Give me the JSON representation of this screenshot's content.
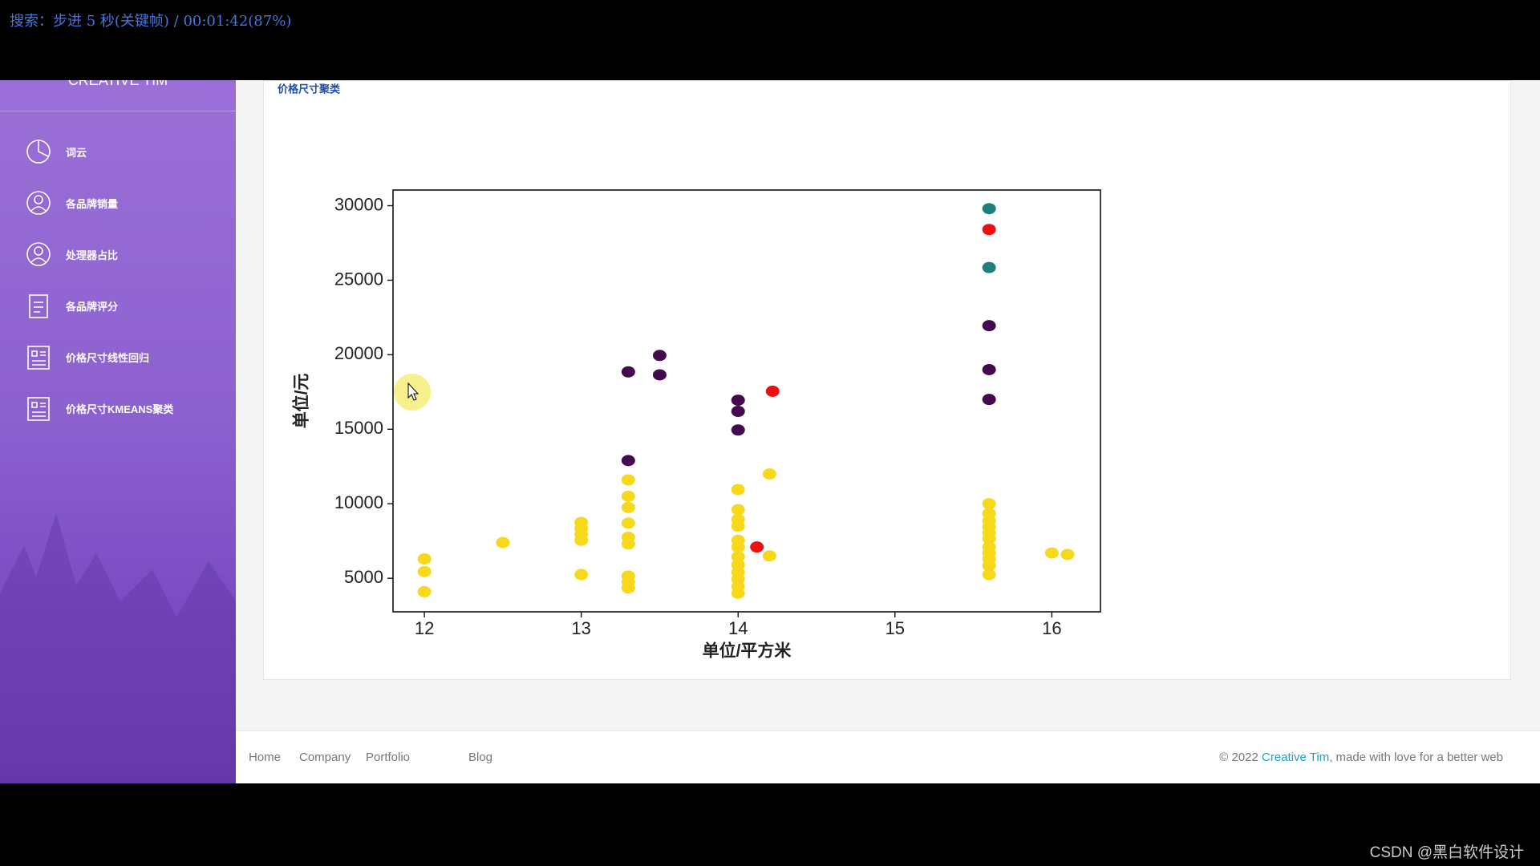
{
  "overlay": {
    "seek": "搜索：步进 5 秒(关键帧) / 00:01:42(87%)",
    "watermark": "CSDN @黑白软件设计"
  },
  "sidebar": {
    "brand": "CREATIVE TIM",
    "items": [
      "词云",
      "各品牌销量",
      "处理器占比",
      "各品牌评分",
      "价格尺寸线性回归",
      "价格尺寸KMEANS聚类"
    ]
  },
  "card": {
    "title": "价格尺寸聚类"
  },
  "chart_data": {
    "type": "scatter",
    "x_label": "单位/平方米",
    "y_label": "单位/元",
    "xlim": [
      11.8,
      16.31
    ],
    "ylim": [
      2750,
      31050
    ],
    "xticks": [
      12,
      13,
      14,
      15,
      16
    ],
    "yticks": [
      5000,
      10000,
      15000,
      20000,
      25000,
      30000
    ],
    "series": [
      {
        "color": "#f7d81a",
        "x": [
          12,
          12,
          12,
          12.5,
          13,
          13,
          13,
          13,
          13,
          13.3,
          13.3,
          13.3,
          13.3,
          13.3,
          13.3,
          13.3,
          13.3,
          13.3,
          14,
          14,
          14,
          14,
          14,
          14,
          14,
          14,
          14,
          14,
          14,
          14,
          14.2,
          14.2,
          15.6,
          15.6,
          15.6,
          15.6,
          15.6,
          15.6,
          15.6,
          15.6,
          15.6,
          15.6,
          15.6,
          16,
          16.1
        ],
        "y": [
          6300,
          5450,
          4100,
          7400,
          8750,
          8350,
          7950,
          7550,
          5250,
          11600,
          10500,
          9750,
          8700,
          7750,
          7300,
          5150,
          4750,
          4350,
          10950,
          9600,
          8950,
          8500,
          7550,
          7100,
          6450,
          5900,
          5400,
          4950,
          4450,
          4000,
          12000,
          6500,
          10000,
          9350,
          8850,
          8450,
          8050,
          7650,
          7100,
          6700,
          6300,
          5850,
          5250,
          6700,
          6600
        ]
      },
      {
        "color": "#440a4f",
        "x": [
          13.3,
          13.3,
          13.5,
          13.5,
          14,
          14,
          14,
          15.6,
          15.6,
          15.6
        ],
        "y": [
          18850,
          12900,
          19950,
          18650,
          16950,
          16200,
          14950,
          21950,
          19000,
          17000
        ]
      },
      {
        "color": "#1e7f7f",
        "x": [
          15.6,
          15.6
        ],
        "y": [
          29800,
          25850
        ]
      },
      {
        "color": "#ee1010",
        "x": [
          15.6,
          14.22,
          14.12
        ],
        "y": [
          28400,
          17550,
          7100
        ]
      }
    ]
  },
  "footer": {
    "links": [
      "Home",
      "Company",
      "Portfolio",
      "Blog"
    ],
    "copy_pre": "© 2022 ",
    "copy_link": "Creative Tim",
    "copy_post": ", made with love for a better web"
  }
}
